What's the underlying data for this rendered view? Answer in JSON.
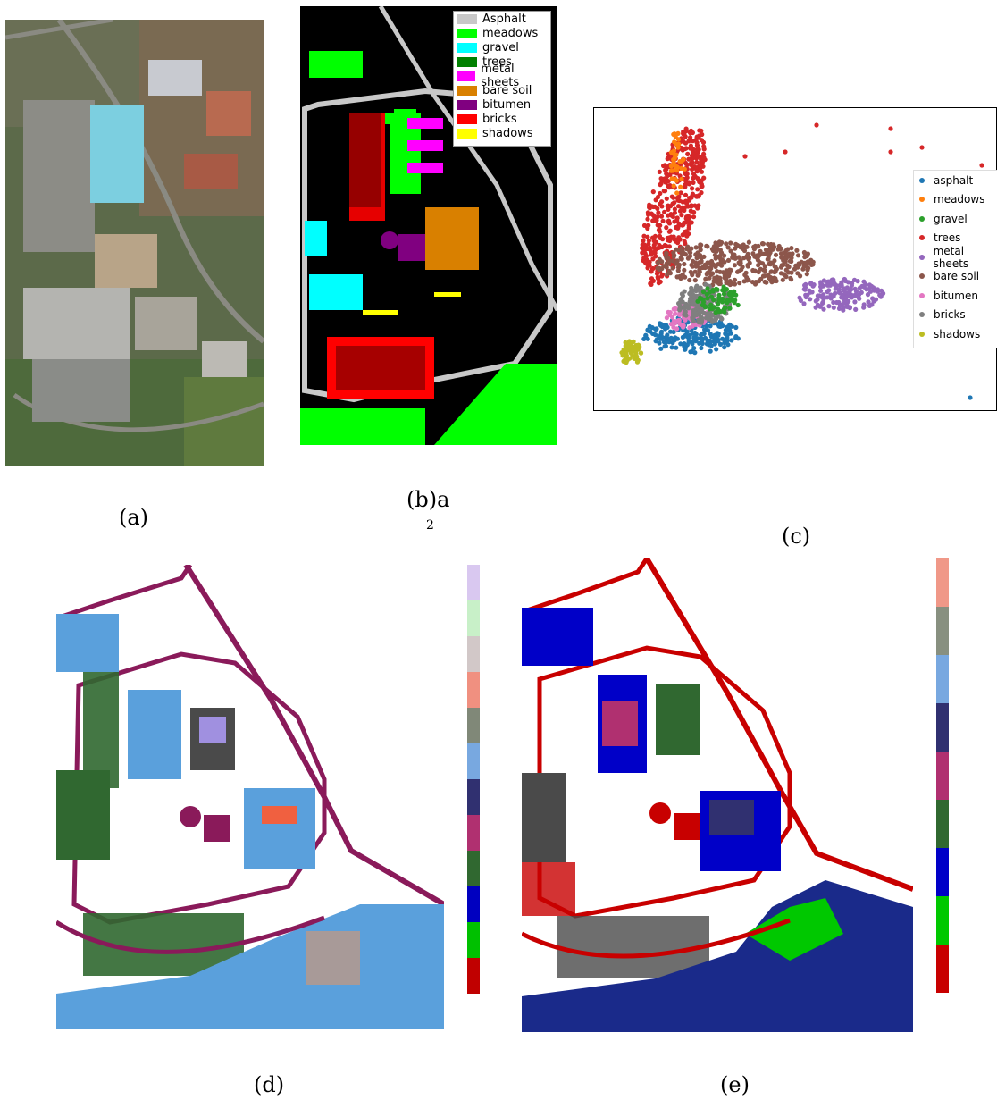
{
  "captions": {
    "a": "(a)",
    "b": "(b)a",
    "b_sup": "2",
    "c": "(c)",
    "d": "(d)",
    "e": "(e)"
  },
  "ground_truth_legend": [
    {
      "label": "Asphalt",
      "color": "#c8c8c8"
    },
    {
      "label": "meadows",
      "color": "#00ff00"
    },
    {
      "label": "gravel",
      "color": "#00ffff"
    },
    {
      "label": "trees",
      "color": "#008000"
    },
    {
      "label": "metal sheets",
      "color": "#ff00ff"
    },
    {
      "label": "bare soil",
      "color": "#d98000"
    },
    {
      "label": "bitumen",
      "color": "#800080"
    },
    {
      "label": "bricks",
      "color": "#ff0000"
    },
    {
      "label": "shadows",
      "color": "#ffff00"
    }
  ],
  "chart_data": {
    "type": "scatter",
    "title": "",
    "xlabel": "",
    "ylabel": "",
    "legend_placement": "right",
    "series": [
      {
        "name": "asphalt",
        "color": "#1f77b4"
      },
      {
        "name": "meadows",
        "color": "#ff7f0e"
      },
      {
        "name": "gravel",
        "color": "#2ca02c"
      },
      {
        "name": "trees",
        "color": "#d62728"
      },
      {
        "name": "metal sheets",
        "color": "#9467bd"
      },
      {
        "name": "bare soil",
        "color": "#8c564b"
      },
      {
        "name": "bitumen",
        "color": "#e377c2"
      },
      {
        "name": "bricks",
        "color": "#7f7f7f"
      },
      {
        "name": "shadows",
        "color": "#bcbd22"
      }
    ]
  },
  "colorbar_d": [
    "#d9c8f0",
    "#c8f0c8",
    "#d2c8c8",
    "#f09080",
    "#808878",
    "#78a8e0",
    "#303070",
    "#b03070",
    "#306830",
    "#0000c0",
    "#00c000",
    "#c00000"
  ],
  "colorbar_e": [
    "#f09888",
    "#889080",
    "#78a8e0",
    "#303070",
    "#b03070",
    "#306830",
    "#0000c8",
    "#00c800",
    "#c80000"
  ]
}
